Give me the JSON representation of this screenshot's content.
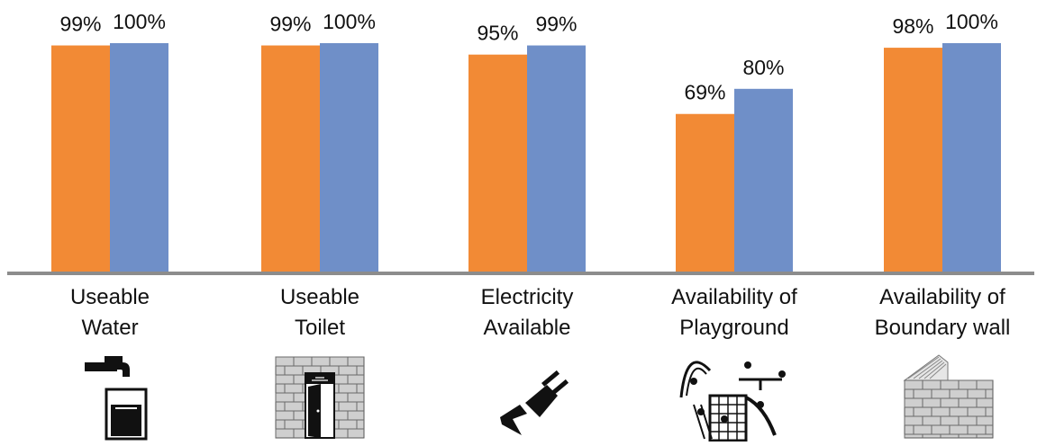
{
  "chart_data": {
    "type": "bar",
    "categories": [
      [
        "Useable",
        "Water"
      ],
      [
        "Useable",
        "Toilet"
      ],
      [
        "Electricity",
        "Available"
      ],
      [
        "Availability of",
        "Playground"
      ],
      [
        "Availability of",
        "Boundary wall"
      ]
    ],
    "series": [
      {
        "values": [
          99,
          99,
          95,
          69,
          98
        ],
        "labels": [
          "99%",
          "99%",
          "95%",
          "69%",
          "98%"
        ],
        "color": "#F28A35"
      },
      {
        "values": [
          100,
          100,
          99,
          80,
          100
        ],
        "labels": [
          "100%",
          "100%",
          "99%",
          "80%",
          "100%"
        ],
        "color": "#6F8FC8"
      }
    ],
    "ylim": [
      0,
      100
    ],
    "axis_color": "#8C8C8C",
    "grid": false,
    "legend": "none",
    "icons": [
      "water-tap-glass-icon",
      "toilet-door-brick-wall-icon",
      "electric-plug-lightning-icon",
      "playground-children-icon",
      "boundary-brick-wall-icon"
    ]
  }
}
